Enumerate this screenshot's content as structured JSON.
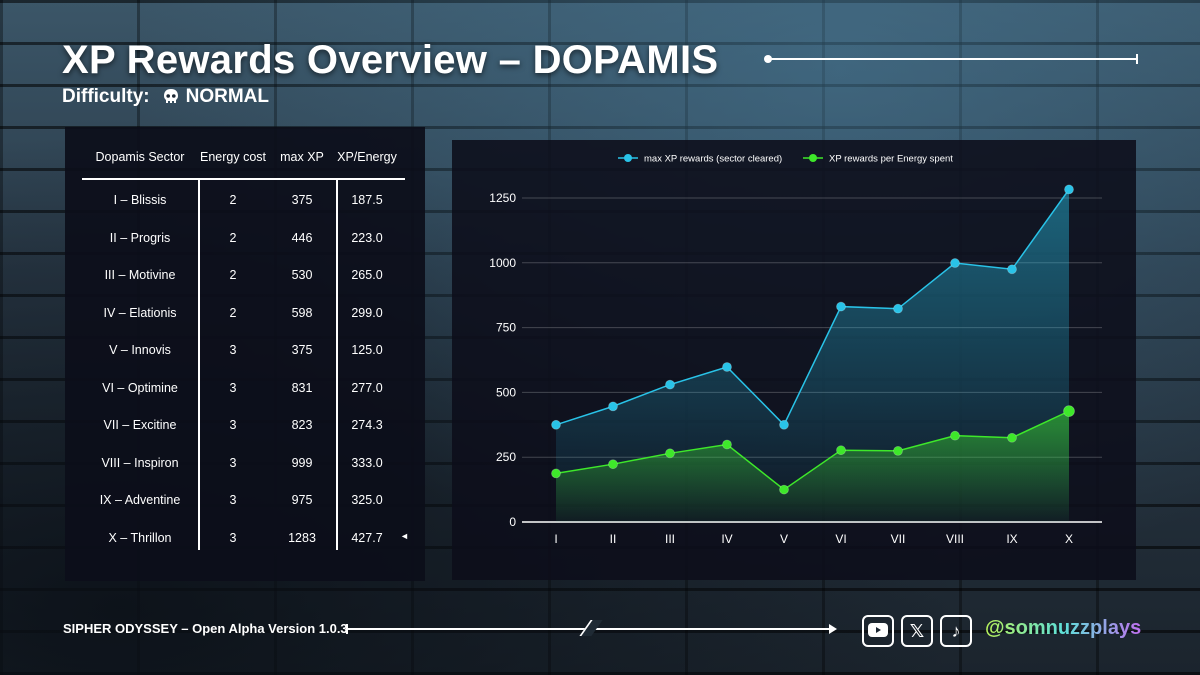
{
  "header": {
    "title": "XP Rewards Overview – DOPAMIS",
    "difficulty_label": "Difficulty:",
    "difficulty_value": "NORMAL"
  },
  "table": {
    "columns": [
      "Dopamis Sector",
      "Energy cost",
      "max XP",
      "XP/Energy"
    ],
    "rows": [
      [
        "I – Blissis",
        "2",
        "375",
        "187.5"
      ],
      [
        "II – Progris",
        "2",
        "446",
        "223.0"
      ],
      [
        "III – Motivine",
        "2",
        "530",
        "265.0"
      ],
      [
        "IV – Elationis",
        "2",
        "598",
        "299.0"
      ],
      [
        "V – Innovis",
        "3",
        "375",
        "125.0"
      ],
      [
        "VI – Optimine",
        "3",
        "831",
        "277.0"
      ],
      [
        "VII – Excitine",
        "3",
        "823",
        "274.3"
      ],
      [
        "VIII – Inspiron",
        "3",
        "999",
        "333.0"
      ],
      [
        "IX – Adventine",
        "3",
        "975",
        "325.0"
      ],
      [
        "X – Thrillon",
        "3",
        "1283",
        "427.7"
      ]
    ],
    "highlight_marker": "◄"
  },
  "chart_data": {
    "type": "area",
    "categories": [
      "I",
      "II",
      "III",
      "IV",
      "V",
      "VI",
      "VII",
      "VIII",
      "IX",
      "X"
    ],
    "series": [
      {
        "name": "max XP rewards (sector cleared)",
        "color": "#29c3e8",
        "values": [
          375,
          446,
          530,
          598,
          375,
          831,
          823,
          999,
          975,
          1283
        ]
      },
      {
        "name": "XP rewards per Energy spent",
        "color": "#3ee82a",
        "values": [
          187.5,
          223.0,
          265.0,
          299.0,
          125.0,
          277.0,
          274.3,
          333.0,
          325.0,
          427.7
        ]
      }
    ],
    "yticks": [
      0,
      250,
      500,
      750,
      1000,
      1250
    ],
    "ylim": [
      0,
      1300
    ],
    "legend_position": "top",
    "grid": true
  },
  "footer": {
    "version_text": "SIPHER ODYSSEY – Open Alpha Version 1.0.3",
    "handle": "@somnuzzplays"
  },
  "socials": [
    {
      "name": "youtube-icon"
    },
    {
      "name": "x-icon",
      "glyph": "𝕏"
    },
    {
      "name": "tiktok-icon",
      "glyph": "♪"
    }
  ]
}
